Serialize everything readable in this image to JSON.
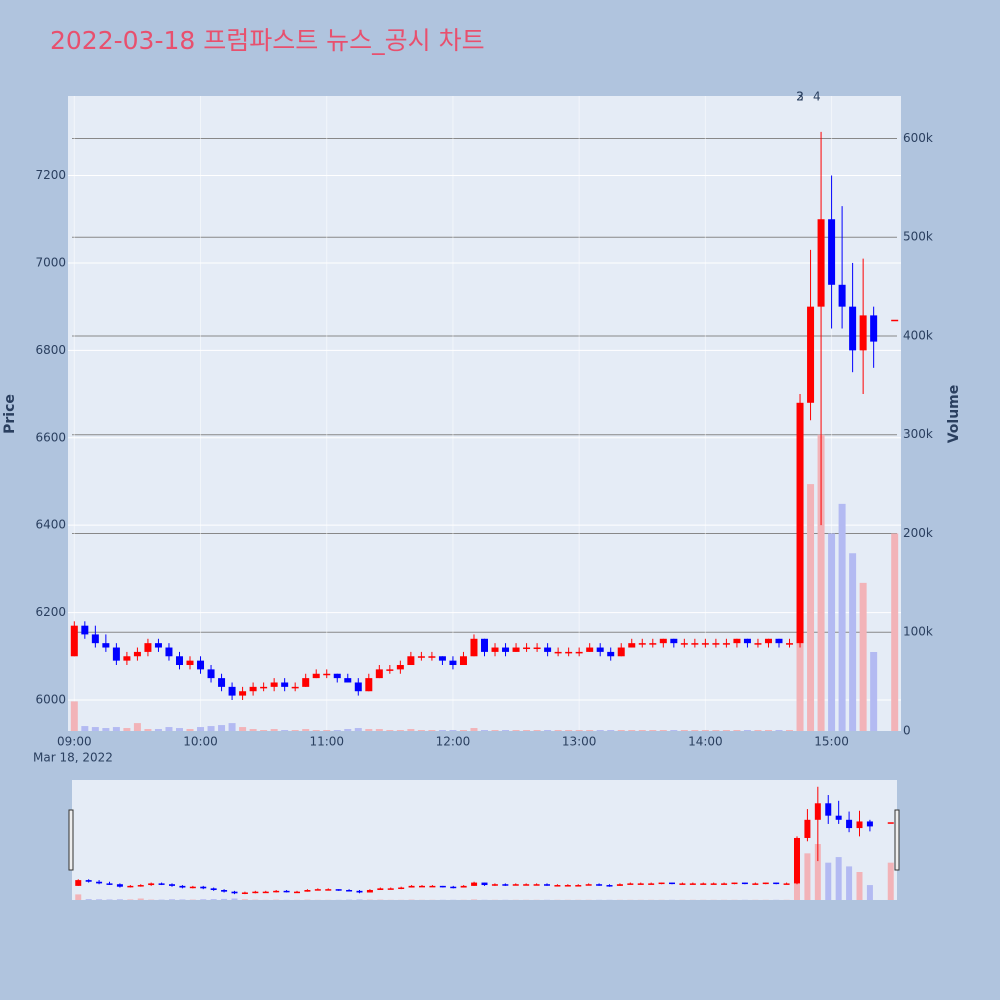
{
  "chart_data": {
    "type": "candlestick",
    "title": "2022-03-18 프럼파스트 뉴스_공시 차트",
    "y_label": "Price",
    "y2_label": "Volume",
    "x_sublabel": "Mar 18, 2022",
    "increasing_color": "#ff0000",
    "decreasing_color": "#0000ff",
    "volume_up_color": "#f2b3b8",
    "volume_down_color": "#b3baf2",
    "x": [
      "09:00",
      "09:05",
      "09:10",
      "09:15",
      "09:20",
      "09:25",
      "09:30",
      "09:35",
      "09:40",
      "09:45",
      "09:50",
      "09:55",
      "10:00",
      "10:05",
      "10:10",
      "10:15",
      "10:20",
      "10:25",
      "10:30",
      "10:35",
      "10:40",
      "10:45",
      "10:50",
      "10:55",
      "11:00",
      "11:05",
      "11:10",
      "11:15",
      "11:20",
      "11:25",
      "11:30",
      "11:35",
      "11:40",
      "11:45",
      "11:50",
      "11:55",
      "12:00",
      "12:05",
      "12:10",
      "12:15",
      "12:20",
      "12:25",
      "12:30",
      "12:35",
      "12:40",
      "12:45",
      "12:50",
      "12:55",
      "13:00",
      "13:05",
      "13:10",
      "13:15",
      "13:20",
      "13:25",
      "13:30",
      "13:35",
      "13:40",
      "13:45",
      "13:50",
      "13:55",
      "14:00",
      "14:05",
      "14:10",
      "14:15",
      "14:20",
      "14:25",
      "14:30",
      "14:35",
      "14:40",
      "14:45",
      "14:50",
      "14:55",
      "15:00",
      "15:05",
      "15:10",
      "15:15",
      "15:20",
      "15:30"
    ],
    "open": [
      6100,
      6170,
      6150,
      6130,
      6120,
      6090,
      6100,
      6110,
      6130,
      6120,
      6100,
      6080,
      6090,
      6070,
      6050,
      6030,
      6010,
      6020,
      6030,
      6030,
      6040,
      6030,
      6030,
      6050,
      6060,
      6060,
      6050,
      6040,
      6020,
      6050,
      6070,
      6070,
      6080,
      6100,
      6100,
      6100,
      6090,
      6080,
      6100,
      6140,
      6110,
      6120,
      6110,
      6120,
      6120,
      6120,
      6110,
      6110,
      6110,
      6110,
      6120,
      6110,
      6100,
      6120,
      6130,
      6130,
      6130,
      6140,
      6130,
      6130,
      6130,
      6130,
      6130,
      6130,
      6140,
      6130,
      6130,
      6140,
      6130,
      6130,
      6680,
      6900,
      7100,
      6950,
      6900,
      6800,
      6880,
      6870
    ],
    "high": [
      6180,
      6180,
      6170,
      6150,
      6130,
      6110,
      6120,
      6140,
      6140,
      6130,
      6110,
      6100,
      6100,
      6080,
      6060,
      6040,
      6030,
      6040,
      6040,
      6050,
      6050,
      6040,
      6060,
      6070,
      6070,
      6060,
      6060,
      6050,
      6060,
      6080,
      6080,
      6090,
      6110,
      6110,
      6110,
      6100,
      6100,
      6110,
      6150,
      6140,
      6130,
      6130,
      6130,
      6130,
      6130,
      6130,
      6120,
      6120,
      6120,
      6130,
      6130,
      6120,
      6130,
      6140,
      6140,
      6140,
      6140,
      6140,
      6140,
      6140,
      6140,
      6140,
      6140,
      6140,
      6140,
      6140,
      6140,
      6140,
      6140,
      6700,
      7030,
      7300,
      7200,
      7130,
      7000,
      7010,
      6900,
      6870
    ],
    "low": [
      6100,
      6140,
      6120,
      6110,
      6080,
      6080,
      6090,
      6100,
      6110,
      6090,
      6070,
      6070,
      6060,
      6040,
      6020,
      6000,
      6000,
      6010,
      6020,
      6020,
      6020,
      6020,
      6030,
      6050,
      6050,
      6040,
      6040,
      6010,
      6020,
      6050,
      6060,
      6060,
      6080,
      6090,
      6090,
      6080,
      6070,
      6080,
      6100,
      6100,
      6100,
      6100,
      6110,
      6110,
      6110,
      6100,
      6100,
      6100,
      6100,
      6110,
      6100,
      6090,
      6100,
      6120,
      6120,
      6120,
      6120,
      6120,
      6120,
      6120,
      6120,
      6120,
      6120,
      6120,
      6120,
      6120,
      6120,
      6120,
      6120,
      6120,
      6640,
      6400,
      6850,
      6850,
      6750,
      6700,
      6760,
      6870
    ],
    "close": [
      6170,
      6150,
      6130,
      6120,
      6090,
      6100,
      6110,
      6130,
      6120,
      6100,
      6080,
      6090,
      6070,
      6050,
      6030,
      6010,
      6020,
      6030,
      6030,
      6040,
      6030,
      6030,
      6050,
      6060,
      6060,
      6050,
      6040,
      6020,
      6050,
      6070,
      6070,
      6080,
      6100,
      6100,
      6100,
      6090,
      6080,
      6100,
      6140,
      6110,
      6120,
      6110,
      6120,
      6120,
      6120,
      6110,
      6110,
      6110,
      6110,
      6120,
      6110,
      6100,
      6120,
      6130,
      6130,
      6130,
      6140,
      6130,
      6130,
      6130,
      6130,
      6130,
      6130,
      6140,
      6130,
      6130,
      6140,
      6130,
      6130,
      6680,
      6900,
      7100,
      6950,
      6900,
      6800,
      6880,
      6820,
      6870
    ],
    "volume": [
      30000,
      5000,
      4000,
      3000,
      4000,
      3000,
      8000,
      2000,
      2000,
      4000,
      3000,
      2000,
      4000,
      5000,
      6000,
      8000,
      4000,
      2000,
      1000,
      2000,
      1000,
      1000,
      2000,
      1000,
      1000,
      1000,
      2000,
      3000,
      2000,
      2000,
      1000,
      1000,
      2000,
      1000,
      1000,
      1000,
      1000,
      1000,
      3000,
      1000,
      1000,
      1000,
      1000,
      1000,
      1000,
      1000,
      1000,
      1000,
      1000,
      1000,
      1000,
      1000,
      1000,
      1000,
      1000,
      1000,
      1000,
      1000,
      1000,
      1000,
      1000,
      1000,
      1000,
      1000,
      1000,
      1000,
      1000,
      1000,
      1000,
      120000,
      250000,
      300000,
      200000,
      230000,
      180000,
      150000,
      80000,
      200000
    ],
    "xlim": [
      "08:57",
      "15:33"
    ],
    "xticks": [
      "09:00",
      "10:00",
      "11:00",
      "12:00",
      "13:00",
      "14:00",
      "15:00"
    ],
    "ylim": [
      5929,
      7382
    ],
    "yticks": [
      6000,
      6200,
      6400,
      6600,
      6800,
      7000,
      7200
    ],
    "y2lim": [
      0,
      643000
    ],
    "y2ticks": [
      0,
      {
        "value": 100000,
        "label": "100k"
      },
      {
        "value": 200000,
        "label": "200k"
      },
      {
        "value": 300000,
        "label": "300k"
      },
      {
        "value": 400000,
        "label": "400k"
      },
      {
        "value": 500000,
        "label": "500k"
      },
      {
        "value": 600000,
        "label": "600k"
      }
    ],
    "annotations": [
      {
        "text": "2",
        "x": "14:45"
      },
      {
        "text": "3",
        "x": "14:45"
      },
      {
        "text": "4",
        "x": "14:53"
      }
    ],
    "grid": true
  }
}
